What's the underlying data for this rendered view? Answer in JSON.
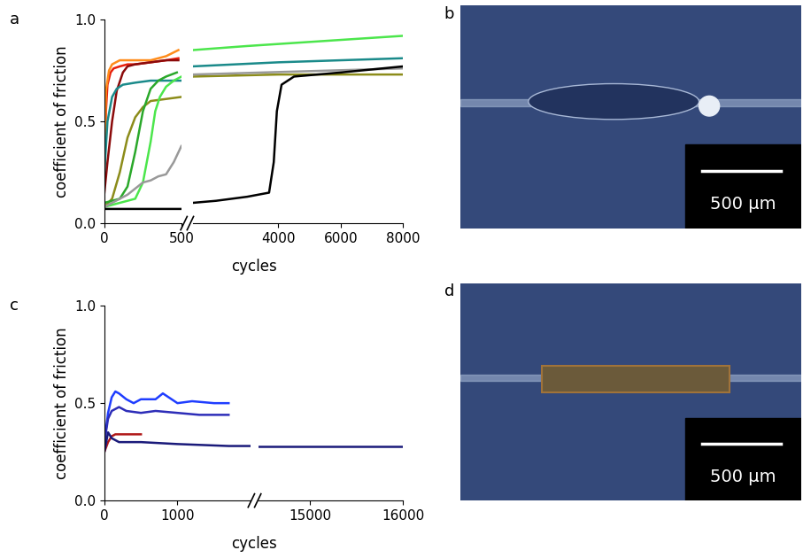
{
  "chart_data": [
    {
      "type": "line",
      "title": "a",
      "x_label": "cycles",
      "y_label": "coefficient of friction",
      "xlim": [
        [
          0,
          500
        ],
        [
          1250,
          8000
        ]
      ],
      "xticks": [
        [
          0,
          500
        ],
        [
          4000,
          6000,
          8000
        ]
      ],
      "ylim": [
        0.0,
        1.0
      ],
      "yticks": [
        0.0,
        0.5,
        1.0
      ],
      "series": [
        {
          "color": "#e8200c",
          "x": [
            0,
            10,
            20,
            40,
            60,
            100,
            150,
            200,
            300,
            400,
            480
          ],
          "values": [
            0.2,
            0.55,
            0.68,
            0.74,
            0.76,
            0.77,
            0.78,
            0.78,
            0.79,
            0.8,
            0.81
          ]
        },
        {
          "color": "#ff8c1a",
          "x": [
            0,
            10,
            30,
            50,
            100,
            200,
            300,
            400,
            480
          ],
          "values": [
            0.3,
            0.65,
            0.75,
            0.78,
            0.8,
            0.8,
            0.8,
            0.82,
            0.85
          ]
        },
        {
          "color": "#8b0a0a",
          "x": [
            0,
            20,
            50,
            80,
            120,
            150,
            200,
            300,
            400,
            480
          ],
          "values": [
            0.15,
            0.3,
            0.5,
            0.65,
            0.74,
            0.77,
            0.78,
            0.79,
            0.8,
            0.8
          ]
        },
        {
          "color": "#1a8a8a",
          "x": [
            0,
            20,
            50,
            80,
            120,
            200,
            300,
            400,
            500,
            1250,
            4000,
            8000
          ],
          "values": [
            0.25,
            0.5,
            0.62,
            0.66,
            0.68,
            0.69,
            0.7,
            0.7,
            0.7,
            0.77,
            0.79,
            0.81
          ]
        },
        {
          "color": "#8c8c1a",
          "x": [
            0,
            50,
            100,
            150,
            200,
            250,
            300,
            400,
            500,
            1250,
            4000,
            8000
          ],
          "values": [
            0.08,
            0.12,
            0.25,
            0.42,
            0.52,
            0.57,
            0.6,
            0.61,
            0.62,
            0.72,
            0.73,
            0.73
          ]
        },
        {
          "color": "#2aa82a",
          "x": [
            0,
            100,
            150,
            200,
            250,
            300,
            350,
            400,
            470
          ],
          "values": [
            0.1,
            0.12,
            0.18,
            0.35,
            0.55,
            0.66,
            0.7,
            0.72,
            0.74
          ]
        },
        {
          "color": "#4ce64c",
          "x": [
            0,
            100,
            200,
            250,
            300,
            330,
            360,
            400,
            450,
            500,
            1250,
            3000,
            5000,
            8000
          ],
          "values": [
            0.08,
            0.1,
            0.12,
            0.2,
            0.4,
            0.55,
            0.62,
            0.67,
            0.7,
            0.72,
            0.85,
            0.87,
            0.89,
            0.92
          ]
        },
        {
          "color": "#999999",
          "x": [
            0,
            50,
            100,
            150,
            200,
            250,
            300,
            350,
            400,
            450,
            500,
            1250,
            8000
          ],
          "values": [
            0.08,
            0.1,
            0.12,
            0.14,
            0.17,
            0.2,
            0.21,
            0.23,
            0.24,
            0.3,
            0.38,
            0.73,
            0.76
          ]
        },
        {
          "color": "#000000",
          "x": [
            0,
            100,
            200,
            300,
            400,
            500,
            1250,
            2000,
            3000,
            3700,
            3850,
            3950,
            4100,
            4500,
            6000,
            8000
          ],
          "values": [
            0.07,
            0.07,
            0.07,
            0.07,
            0.07,
            0.07,
            0.1,
            0.11,
            0.13,
            0.15,
            0.3,
            0.55,
            0.68,
            0.72,
            0.74,
            0.77
          ]
        }
      ]
    },
    {
      "type": "line",
      "title": "c",
      "x_label": "cycles",
      "y_label": "coefficient of friction",
      "xlim": [
        [
          0,
          2000
        ],
        [
          14450,
          16000
        ]
      ],
      "xticks": [
        [
          0,
          1000
        ],
        [
          15000,
          16000
        ]
      ],
      "ylim": [
        0.0,
        1.0
      ],
      "yticks": [
        0.0,
        0.5,
        1.0
      ],
      "series": [
        {
          "color": "#1f3dff",
          "x": [
            0,
            50,
            100,
            150,
            200,
            300,
            400,
            500,
            700,
            800,
            1000,
            1200,
            1500,
            1700
          ],
          "values": [
            0.3,
            0.45,
            0.53,
            0.56,
            0.55,
            0.52,
            0.5,
            0.52,
            0.52,
            0.55,
            0.5,
            0.51,
            0.5,
            0.5
          ]
        },
        {
          "color": "#2d2db8",
          "x": [
            0,
            50,
            100,
            200,
            300,
            500,
            700,
            1000,
            1300,
            1700
          ],
          "values": [
            0.3,
            0.42,
            0.46,
            0.48,
            0.46,
            0.45,
            0.46,
            0.45,
            0.44,
            0.44
          ]
        },
        {
          "color": "#b01818",
          "x": [
            0,
            50,
            100,
            150,
            200,
            300,
            400,
            500
          ],
          "values": [
            0.25,
            0.3,
            0.33,
            0.34,
            0.34,
            0.34,
            0.34,
            0.34
          ]
        },
        {
          "color": "#1a1a7a",
          "x": [
            0,
            50,
            100,
            200,
            300,
            500,
            1000,
            1700,
            14450,
            16000
          ],
          "values": [
            0.25,
            0.35,
            0.32,
            0.3,
            0.3,
            0.3,
            0.29,
            0.28,
            0.28,
            0.28
          ]
        }
      ]
    }
  ],
  "images": [
    {
      "title": "b",
      "scale_bar": "500 µm"
    },
    {
      "title": "d",
      "scale_bar": "500 µm"
    }
  ]
}
